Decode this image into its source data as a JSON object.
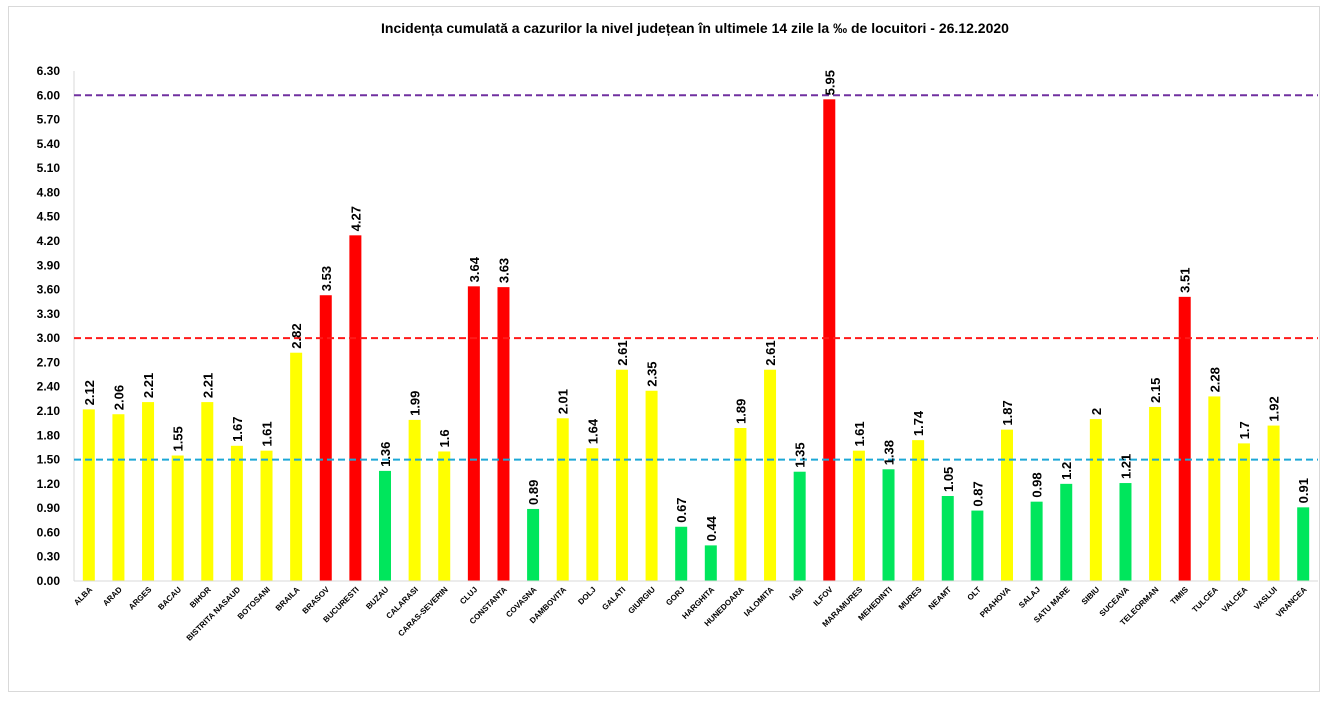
{
  "chart_data": {
    "type": "bar",
    "title": "Incidența cumulată a cazurilor la nivel județean în ultimele 14 zile la ‰ de locuitori - 26.12.2020",
    "xlabel": "",
    "ylabel": "",
    "ylim": [
      0,
      6.3
    ],
    "yticks": [
      "0.00",
      "0.30",
      "0.60",
      "0.90",
      "1.20",
      "1.50",
      "1.80",
      "2.10",
      "2.40",
      "2.70",
      "3.00",
      "3.30",
      "3.60",
      "3.90",
      "4.20",
      "4.50",
      "4.80",
      "5.10",
      "5.40",
      "5.70",
      "6.00",
      "6.30"
    ],
    "categories": [
      "ALBA",
      "ARAD",
      "ARGES",
      "BACAU",
      "BIHOR",
      "BISTRITA NASAUD",
      "BOTOSANI",
      "BRAILA",
      "BRASOV",
      "BUCURESTI",
      "BUZAU",
      "CALARASI",
      "CARAS-SEVERIN",
      "CLUJ",
      "CONSTANTA",
      "COVASNA",
      "DAMBOVITA",
      "DOLJ",
      "GALATI",
      "GIURGIU",
      "GORJ",
      "HARGHITA",
      "HUNEDOARA",
      "IALOMITA",
      "IASI",
      "ILFOV",
      "MARAMURES",
      "MEHEDINTI",
      "MURES",
      "NEAMT",
      "OLT",
      "PRAHOVA",
      "SALAJ",
      "SATU MARE",
      "SIBIU",
      "SUCEAVA",
      "TELEORMAN",
      "TIMIS",
      "TULCEA",
      "VALCEA",
      "VASLUI",
      "VRANCEA"
    ],
    "values": [
      2.12,
      2.06,
      2.21,
      1.55,
      2.21,
      1.67,
      1.61,
      2.82,
      3.53,
      4.27,
      1.36,
      1.99,
      1.6,
      3.64,
      3.63,
      0.89,
      2.01,
      1.64,
      2.61,
      2.35,
      0.67,
      0.44,
      1.89,
      2.61,
      1.35,
      5.95,
      1.61,
      1.38,
      1.74,
      1.05,
      0.87,
      1.87,
      0.98,
      1.2,
      2,
      1.21,
      2.15,
      3.51,
      2.28,
      1.7,
      1.92,
      0.91
    ],
    "data_labels": [
      "2.12",
      "2.06",
      "2.21",
      "1.55",
      "2.21",
      "1.67",
      "1.61",
      "2.82",
      "3.53",
      "4.27",
      "1.36",
      "1.99",
      "1.6",
      "3.64",
      "3.63",
      "0.89",
      "2.01",
      "1.64",
      "2.61",
      "2.35",
      "0.67",
      "0.44",
      "1.89",
      "2.61",
      "1.35",
      "5.95",
      "1.61",
      "1.38",
      "1.74",
      "1.05",
      "0.87",
      "1.87",
      "0.98",
      "1.2",
      "2",
      "1.21",
      "2.15",
      "3.51",
      "2.28",
      "1.7",
      "1.92",
      "0.91"
    ],
    "color_rule": "green below 1.5, yellow from 1.5 to 3, red above 3",
    "colors": {
      "low": "#00e65c",
      "mid": "#ffff00",
      "high": "#ff0000"
    },
    "thresholds": [
      {
        "value": 1.5,
        "color": "#1ca8d6",
        "style": "dashed"
      },
      {
        "value": 3.0,
        "color": "#ff1a1a",
        "style": "dashed"
      },
      {
        "value": 6.0,
        "color": "#7030a0",
        "style": "dashed"
      }
    ],
    "grid": false,
    "legend": "none"
  }
}
